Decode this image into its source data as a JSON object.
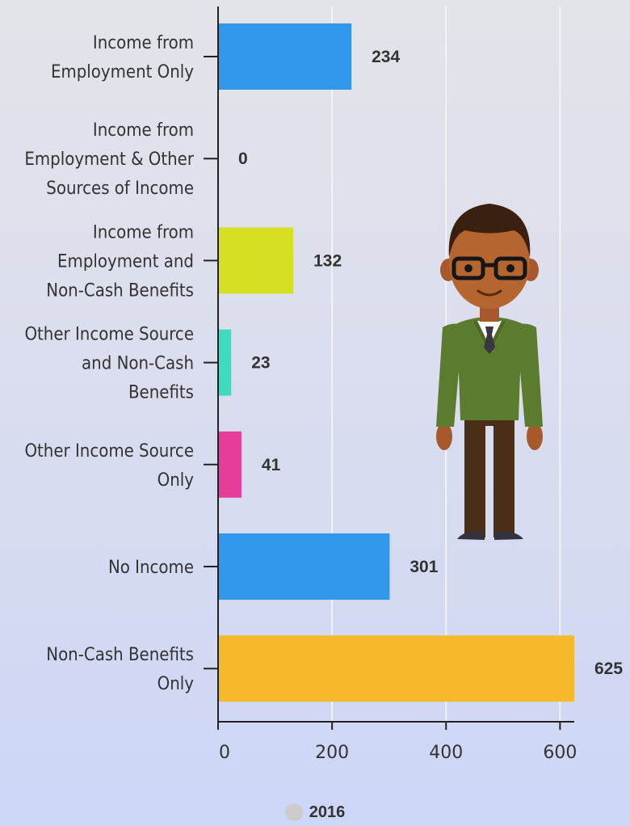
{
  "chart_data": {
    "type": "bar",
    "orientation": "horizontal",
    "categories": [
      [
        "Income from",
        "Employment Only"
      ],
      [
        "Income from",
        "Employment & Other",
        "Sources of Income"
      ],
      [
        "Income from",
        "Employment and",
        "Non-Cash Benefits"
      ],
      [
        "Other Income Source",
        "and Non-Cash",
        "Benefits"
      ],
      [
        "Other Income Source",
        "Only"
      ],
      [
        "No Income"
      ],
      [
        "Non-Cash Benefits",
        "Only"
      ]
    ],
    "values": [
      234,
      0,
      132,
      23,
      41,
      301,
      625
    ],
    "value_labels": [
      "234",
      "0",
      "132",
      "23",
      "41",
      "301",
      "625"
    ],
    "bar_colors": [
      "#3197ea",
      "#3197ea",
      "#d6df22",
      "#3ddbc0",
      "#e63c9c",
      "#3197ea",
      "#f6b92b"
    ],
    "x_ticks": [
      0,
      200,
      400,
      600
    ],
    "x_tick_labels": [
      "0",
      "200",
      "400",
      "600"
    ],
    "xlim": [
      0,
      625
    ],
    "grid": true,
    "legend": {
      "position": "bottom",
      "entries": [
        {
          "label": "2016",
          "color": "#cccccc"
        }
      ]
    }
  }
}
